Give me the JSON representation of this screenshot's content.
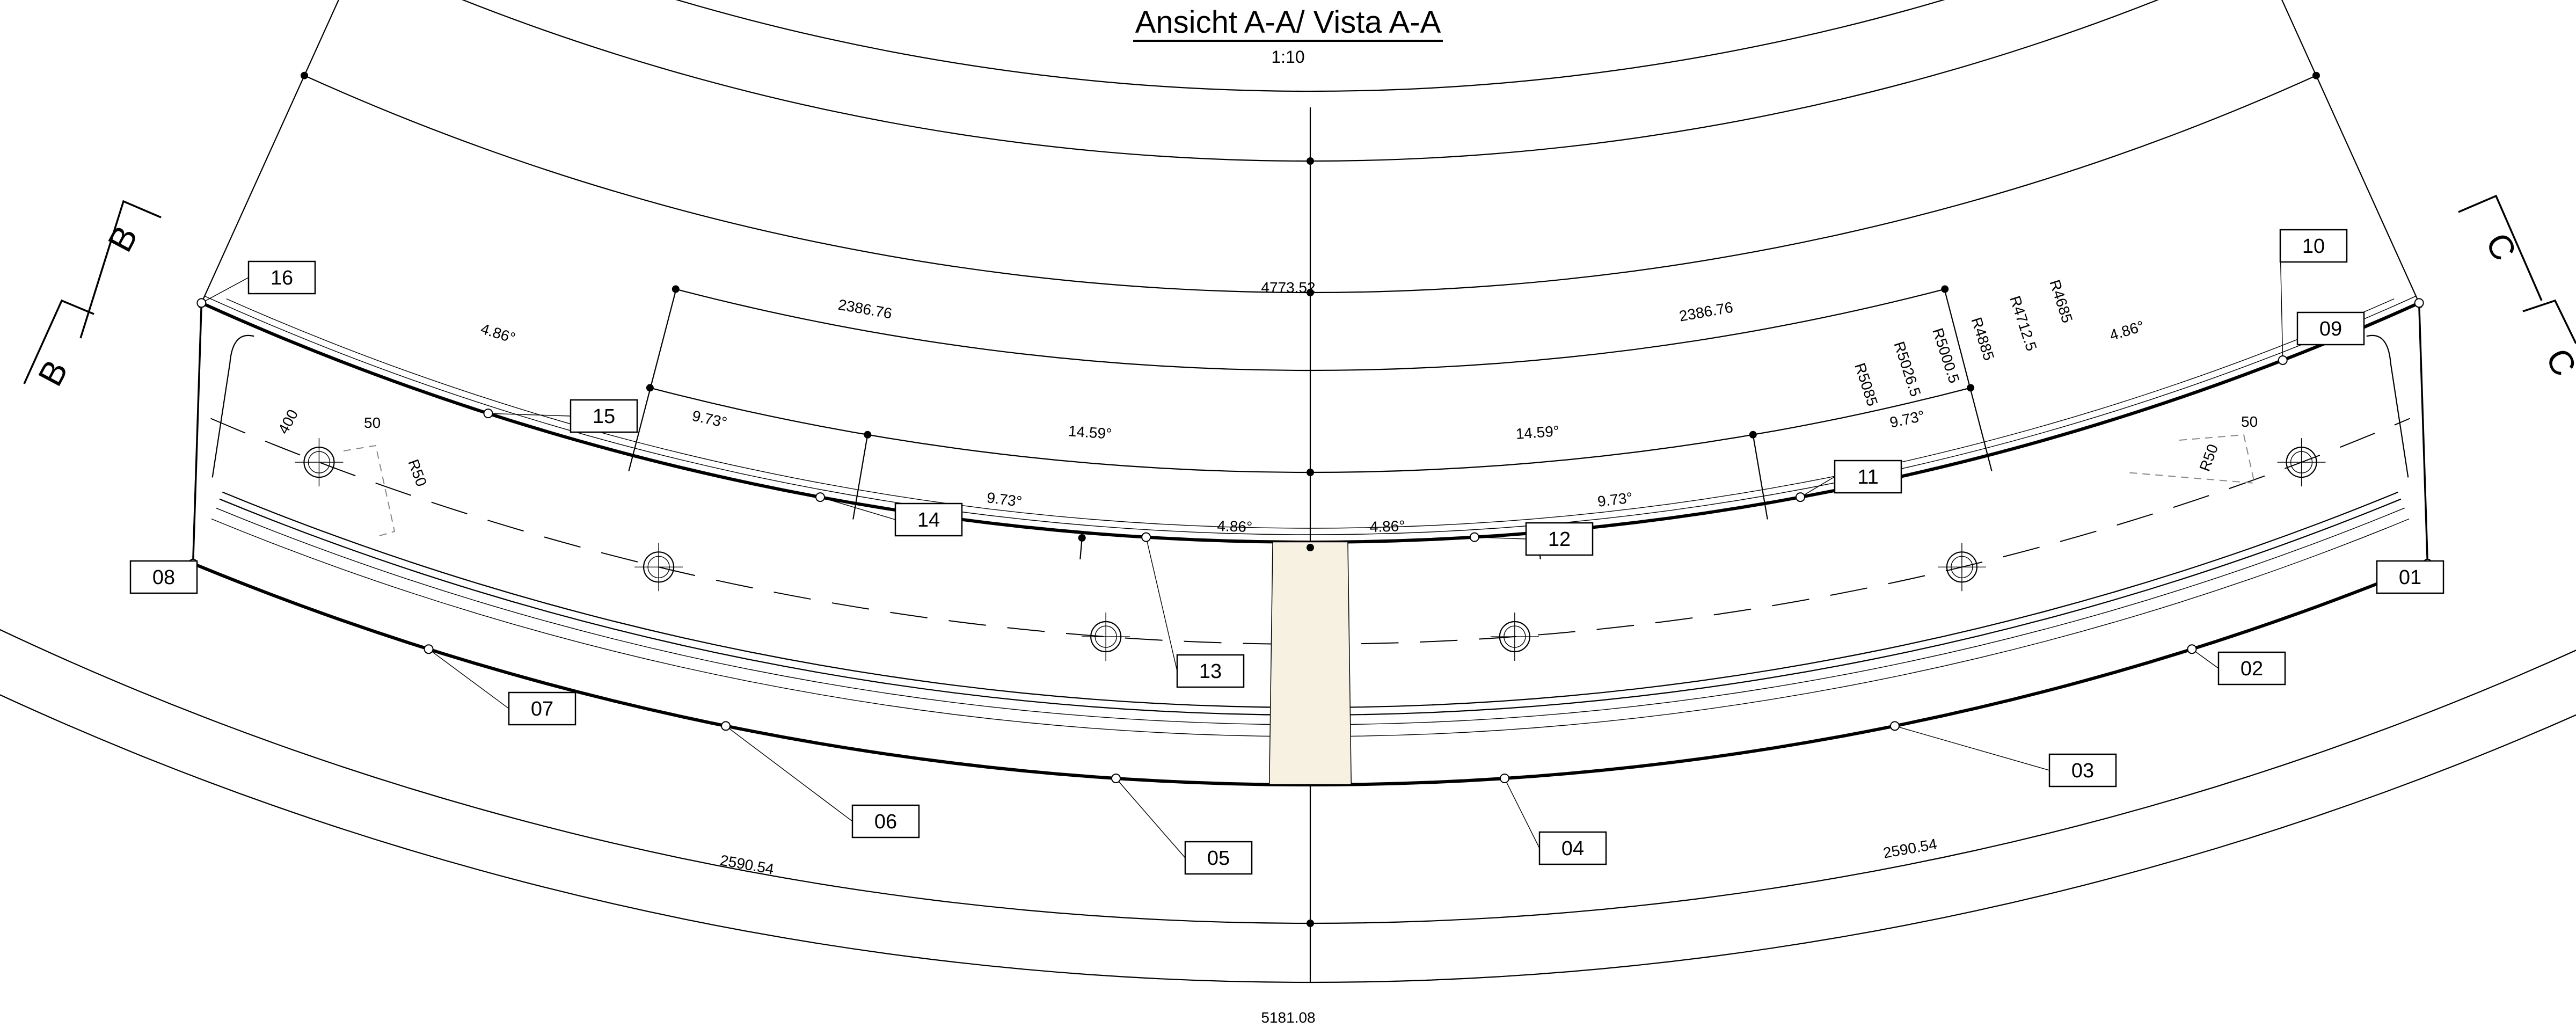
{
  "title": "Ansicht A-A/ Vista A-A",
  "scale": "1:10",
  "section_markers": [
    "B",
    "B",
    "C",
    "C"
  ],
  "arc_lengths": {
    "top_total": "4773.52",
    "top_left": "2386.76",
    "top_right": "2386.76",
    "bottom_total": "5181.08",
    "bottom_left": "2590.54",
    "bottom_right": "2590.54"
  },
  "angles": {
    "a1": "4.86°",
    "a2": "9.73°",
    "a3": "14.59°",
    "a4": "14.59°",
    "a5": "9.73°",
    "a6": "4.86°",
    "b1": "9.73°",
    "b2": "4.86°",
    "b3": "4.86°",
    "b4": "9.73°"
  },
  "radii": [
    "R5085",
    "R5026.5",
    "R5000.5",
    "R4885",
    "R4712.5",
    "R4685"
  ],
  "small_dims": {
    "width_400": "400",
    "r_left": "R50",
    "r_right": "R50",
    "d_left": "50",
    "d_right": "50"
  },
  "callouts": [
    "01",
    "02",
    "03",
    "04",
    "05",
    "06",
    "07",
    "08",
    "09",
    "10",
    "11",
    "12",
    "13",
    "14",
    "15",
    "16"
  ]
}
